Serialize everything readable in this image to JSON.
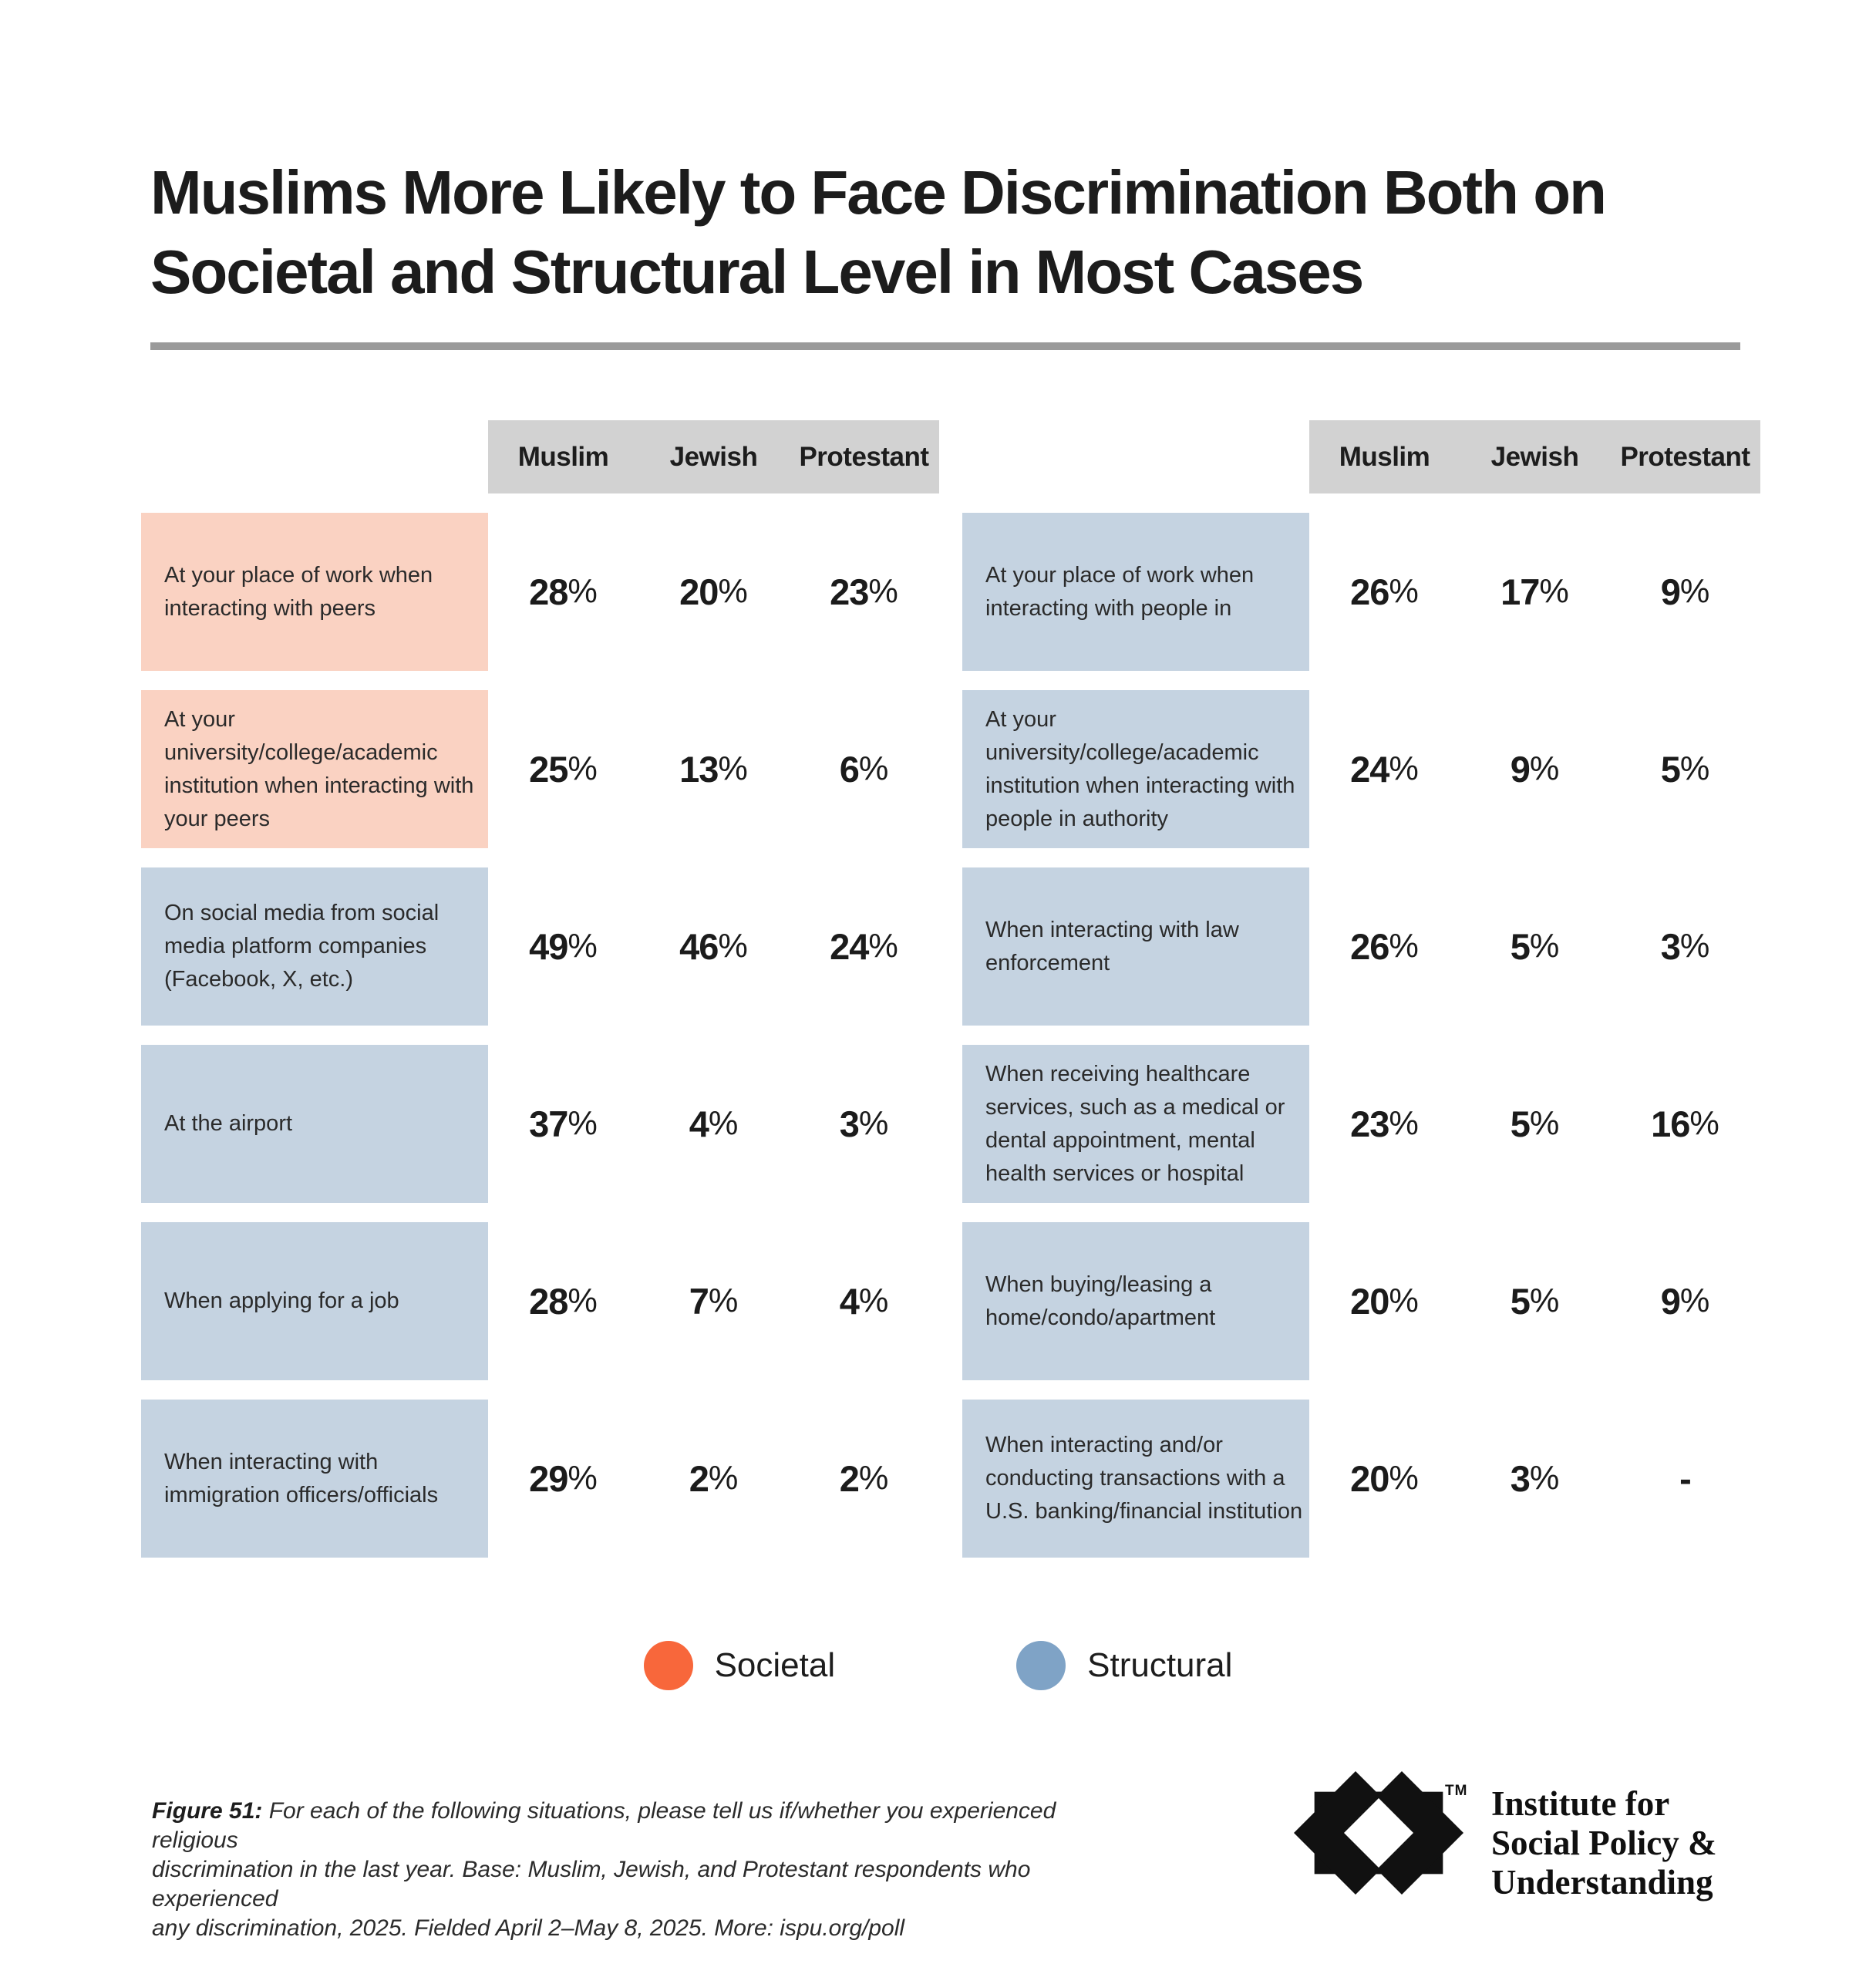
{
  "title_lines": [
    "Muslims More Likely to Face Discrimination Both on",
    "Societal and Structural Level in Most Cases"
  ],
  "colors": {
    "societal_accent": "#f8673b",
    "structural_accent": "#7fa3c6",
    "societal_label_box": "#fad2c2",
    "structural_label_box": "#c5d3e1",
    "header_bg": "#d2d2d2",
    "divider": "#9a9a9a"
  },
  "chart_data": {
    "type": "table",
    "title": "Muslims More Likely to Face Discrimination Both on Societal and Structural Level in Most Cases",
    "legend": [
      {
        "label": "Societal",
        "color": "#f8673b"
      },
      {
        "label": "Structural",
        "color": "#7fa3c6"
      }
    ],
    "tables": [
      {
        "columns": [
          "Muslim",
          "Jewish",
          "Protestant"
        ],
        "rows": [
          {
            "label": "At your place of work when interacting with peers",
            "category": "societal",
            "values": [
              "28%",
              "20%",
              "23%"
            ]
          },
          {
            "label": "At your university/college/academic institution when interacting with your peers",
            "category": "societal",
            "values": [
              "25%",
              "13%",
              "6%"
            ]
          },
          {
            "label": "On social media from social media platform companies (Facebook, X, etc.)",
            "category": "structural",
            "values": [
              "49%",
              "46%",
              "24%"
            ]
          },
          {
            "label": "At the airport",
            "category": "structural",
            "values": [
              "37%",
              "4%",
              "3%"
            ]
          },
          {
            "label": "When applying for a job",
            "category": "structural",
            "values": [
              "28%",
              "7%",
              "4%"
            ]
          },
          {
            "label": "When interacting with immigration officers/officials",
            "category": "structural",
            "values": [
              "29%",
              "2%",
              "2%"
            ]
          }
        ]
      },
      {
        "columns": [
          "Muslim",
          "Jewish",
          "Protestant"
        ],
        "rows": [
          {
            "label": "At your place of work when interacting with people in",
            "category": "structural",
            "values": [
              "26%",
              "17%",
              "9%"
            ]
          },
          {
            "label": "At your university/college/academic institution when interacting with people in authority",
            "category": "structural",
            "values": [
              "24%",
              "9%",
              "5%"
            ]
          },
          {
            "label": "When interacting with law enforcement",
            "category": "structural",
            "values": [
              "26%",
              "5%",
              "3%"
            ]
          },
          {
            "label": "When receiving healthcare services, such as a medical or dental appointment, mental health services or hospital",
            "category": "structural",
            "values": [
              "23%",
              "5%",
              "16%"
            ]
          },
          {
            "label": "When buying/leasing a home/condo/apartment",
            "category": "structural",
            "values": [
              "20%",
              "5%",
              "9%"
            ]
          },
          {
            "label": "When interacting and/or conducting transactions with a U.S. banking/financial institution",
            "category": "structural",
            "values": [
              "20%",
              "3%",
              "-"
            ]
          }
        ]
      }
    ]
  },
  "footer": {
    "figure_label": "Figure 51:",
    "lines": [
      "For each of the following situations, please tell us if/whether you experienced religious",
      "discrimination in the last year. Base: Muslim, Jewish, and Protestant respondents who experienced",
      "any discrimination, 2025. Fielded April 2–May 8, 2025. More: ispu.org/poll"
    ]
  },
  "logo": {
    "tm": "TM",
    "lines": [
      "Institute for",
      "Social Policy &",
      "Understanding"
    ]
  }
}
